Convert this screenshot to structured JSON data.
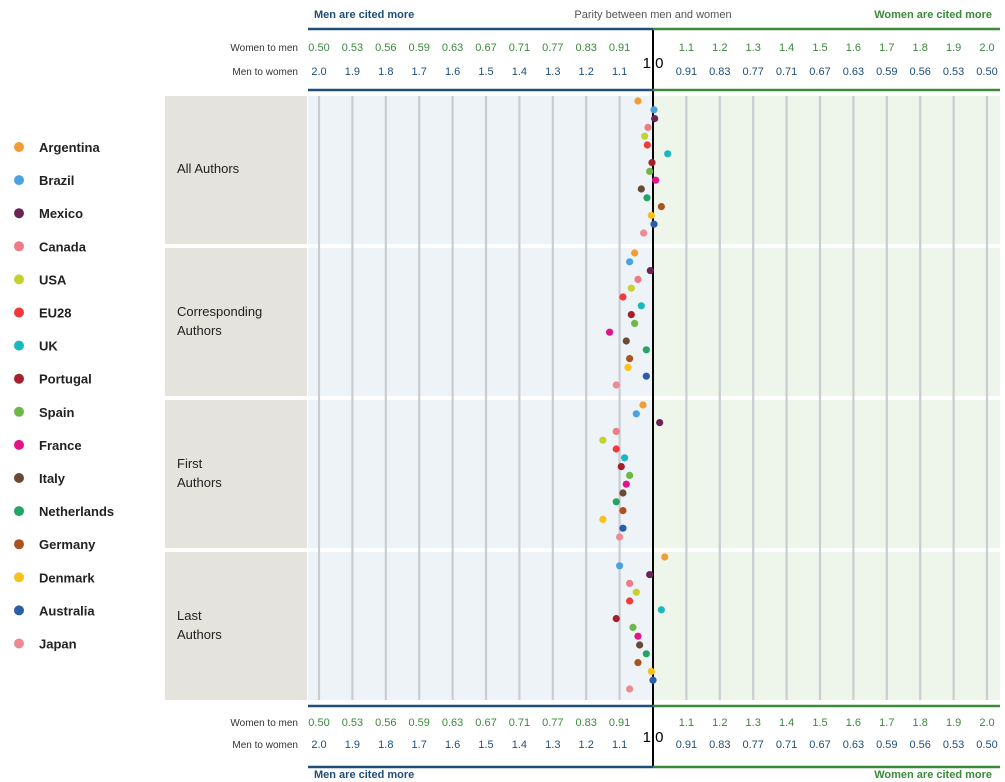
{
  "header": {
    "men_cited_more": "Men are cited more",
    "parity": "Parity between men and women",
    "women_cited_more": "Women are cited more"
  },
  "footer": {
    "men_cited_more": "Men are cited more",
    "women_cited_more": "Women are cited more"
  },
  "colors": {
    "men_side": "#1f4e79",
    "women_side": "#3a8a3a",
    "parity_line": "#000000",
    "panel_left": "#eef3f8",
    "panel_right": "#eef5ea",
    "label_panel": "#e5e3dd"
  },
  "chart_data": {
    "type": "scatter",
    "axis": {
      "row1_label": "Women to men",
      "row2_label": "Men to women",
      "parity_label": "1.0",
      "ticks_left": [
        {
          "wm": "0.50",
          "mw": "2.0"
        },
        {
          "wm": "0.53",
          "mw": "1.9"
        },
        {
          "wm": "0.56",
          "mw": "1.8"
        },
        {
          "wm": "0.59",
          "mw": "1.7"
        },
        {
          "wm": "0.63",
          "mw": "1.6"
        },
        {
          "wm": "0.67",
          "mw": "1.5"
        },
        {
          "wm": "0.71",
          "mw": "1.4"
        },
        {
          "wm": "0.77",
          "mw": "1.3"
        },
        {
          "wm": "0.83",
          "mw": "1.2"
        },
        {
          "wm": "0.91",
          "mw": "1.1"
        }
      ],
      "ticks_right": [
        {
          "wm": "1.1",
          "mw": "0.91"
        },
        {
          "wm": "1.2",
          "mw": "0.83"
        },
        {
          "wm": "1.3",
          "mw": "0.77"
        },
        {
          "wm": "1.4",
          "mw": "0.71"
        },
        {
          "wm": "1.5",
          "mw": "0.67"
        },
        {
          "wm": "1.6",
          "mw": "0.63"
        },
        {
          "wm": "1.7",
          "mw": "0.59"
        },
        {
          "wm": "1.8",
          "mw": "0.56"
        },
        {
          "wm": "1.9",
          "mw": "0.53"
        },
        {
          "wm": "2.0",
          "mw": "0.50"
        }
      ]
    },
    "legend": [
      {
        "name": "Argentina",
        "color": "#f39c34"
      },
      {
        "name": "Brazil",
        "color": "#4aa3df"
      },
      {
        "name": "Mexico",
        "color": "#6b2457"
      },
      {
        "name": "Canada",
        "color": "#ef7b86"
      },
      {
        "name": "USA",
        "color": "#c7d12e"
      },
      {
        "name": "EU28",
        "color": "#f0393c"
      },
      {
        "name": "UK",
        "color": "#1bb8c0"
      },
      {
        "name": "Portugal",
        "color": "#a4202a"
      },
      {
        "name": "Spain",
        "color": "#6fb847"
      },
      {
        "name": "France",
        "color": "#e3148a"
      },
      {
        "name": "Italy",
        "color": "#6a4a32"
      },
      {
        "name": "Netherlands",
        "color": "#23a565"
      },
      {
        "name": "Germany",
        "color": "#a9531f"
      },
      {
        "name": "Denmark",
        "color": "#f7c21b"
      },
      {
        "name": "Australia",
        "color": "#2a5ea8"
      },
      {
        "name": "Japan",
        "color": "#ef8a92"
      }
    ],
    "groups": [
      {
        "label": [
          "All Authors"
        ],
        "values": [
          -0.45,
          0.03,
          0.05,
          -0.15,
          -0.25,
          -0.17,
          0.44,
          -0.03,
          -0.1,
          0.08,
          -0.35,
          -0.18,
          0.25,
          -0.05,
          0.03,
          -0.28
        ]
      },
      {
        "label": [
          "Corresponding",
          "Authors"
        ],
        "values": [
          -0.55,
          -0.7,
          -0.08,
          -0.45,
          -0.65,
          -0.9,
          -0.35,
          -0.65,
          -0.55,
          -1.3,
          -0.8,
          -0.2,
          -0.7,
          -0.75,
          -0.2,
          -1.1
        ]
      },
      {
        "label": [
          "First",
          "Authors"
        ],
        "values": [
          -0.3,
          -0.5,
          0.2,
          -1.1,
          -1.5,
          -1.1,
          -0.85,
          -0.95,
          -0.7,
          -0.8,
          -0.9,
          -1.1,
          -0.9,
          -1.5,
          -0.9,
          -1.0
        ]
      },
      {
        "label": [
          "Last",
          "Authors"
        ],
        "values": [
          0.35,
          -1.0,
          -0.1,
          -0.7,
          -0.5,
          -0.7,
          0.25,
          -1.1,
          -0.6,
          -0.45,
          -0.4,
          -0.2,
          -0.45,
          -0.05,
          0.0,
          -0.7
        ]
      }
    ]
  }
}
